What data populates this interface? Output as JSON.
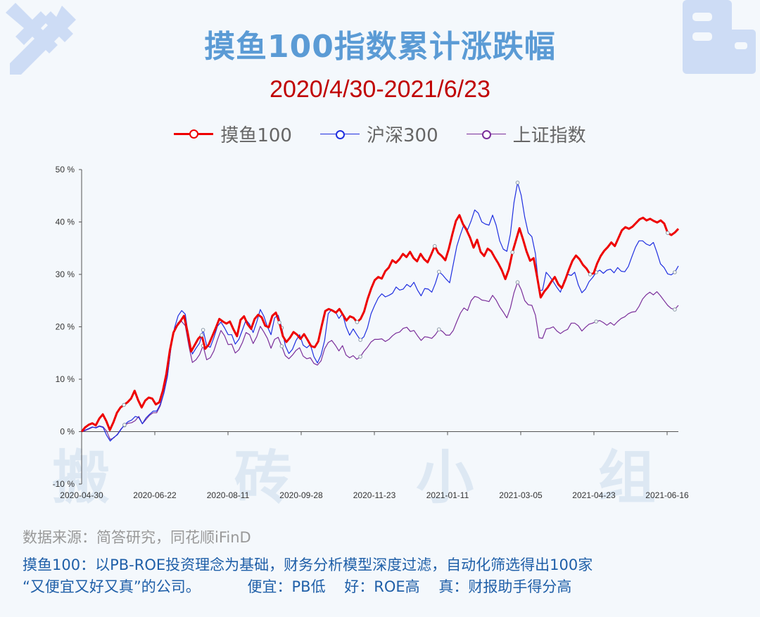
{
  "header": {
    "title": "摸鱼100指数累计涨跌幅",
    "subtitle": "2020/4/30-2021/6/23",
    "watermark": "搬 砖 小 组"
  },
  "footer": {
    "source": "数据来源：简答研究，同花顺iFinD",
    "desc_line1": "摸鱼100：以PB-ROE投资理念为基础，财务分析模型深度过滤，自动化筛选得出100家",
    "desc_line2": "“又便宜又好又真”的公司。          便宜：PB低    好：ROE高    真：财报助手得分高"
  },
  "icons": {
    "top_left": "tools-icon",
    "top_right": "building-icon"
  },
  "chart_data": {
    "type": "line",
    "title": "摸鱼100指数累计涨跌幅",
    "subtitle": "2020/4/30-2021/6/23",
    "xlabel": "",
    "ylabel": "",
    "ylim": [
      -10,
      50
    ],
    "yticks": [
      -10,
      0,
      10,
      20,
      30,
      40,
      50
    ],
    "ytick_labels": [
      "-10 %",
      "0 %",
      "10 %",
      "20 %",
      "30 %",
      "40 %",
      "50 %"
    ],
    "xtick_labels": [
      "2020-04-30",
      "2020-06-22",
      "2020-08-11",
      "2020-09-28",
      "2020-11-23",
      "2021-01-11",
      "2021-03-05",
      "2021-04-23",
      "2021-06-16"
    ],
    "grid": false,
    "legend": "top-center",
    "series": [
      {
        "name": "摸鱼100",
        "color": "#ee0000",
        "values": [
          0,
          0.8,
          1.3,
          1.6,
          1.2,
          2.5,
          3.3,
          2.0,
          0.3,
          1.8,
          3.6,
          4.6,
          5.1,
          5.6,
          6.3,
          7.8,
          6.0,
          4.6,
          5.9,
          6.5,
          6.3,
          5.2,
          5.6,
          7.8,
          11.0,
          15.5,
          18.9,
          20.2,
          21.1,
          22.1,
          19.0,
          15.3,
          16.5,
          17.7,
          18.4,
          15.8,
          16.6,
          18.2,
          19.8,
          21.5,
          21.0,
          20.6,
          21.0,
          19.5,
          18.2,
          21.3,
          22.0,
          20.5,
          19.6,
          21.5,
          22.3,
          21.8,
          20.2,
          19.9,
          22.1,
          22.7,
          20.8,
          18.2,
          17.1,
          17.9,
          19.0,
          18.5,
          17.7,
          18.6,
          17.5,
          16.3,
          16.1,
          17.2,
          20.2,
          23.0,
          23.4,
          23.1,
          22.7,
          23.4,
          22.3,
          21.2,
          22.0,
          21.7,
          20.9,
          21.5,
          22.9,
          25.3,
          27.3,
          28.9,
          29.5,
          29.2,
          30.6,
          31.3,
          32.7,
          32.2,
          32.9,
          33.9,
          33.3,
          34.3,
          33.1,
          32.5,
          33.9,
          32.9,
          32.3,
          33.8,
          35.4,
          34.1,
          33.5,
          32.7,
          34.9,
          37.7,
          40.2,
          41.3,
          39.6,
          38.5,
          37.0,
          35.1,
          36.6,
          34.3,
          33.5,
          34.9,
          34.4,
          33.2,
          32.1,
          30.8,
          29.1,
          31.0,
          34.2,
          36.5,
          38.8,
          36.7,
          34.4,
          32.6,
          33.1,
          29.5,
          25.6,
          26.7,
          27.5,
          28.6,
          29.5,
          28.1,
          27.4,
          29.0,
          30.9,
          32.6,
          33.6,
          32.9,
          31.8,
          31.1,
          30.0,
          30.2,
          32.1,
          33.5,
          34.5,
          35.2,
          36.1,
          35.4,
          36.9,
          38.4,
          39.0,
          38.7,
          39.1,
          39.8,
          40.5,
          40.8,
          40.3,
          40.6,
          40.2,
          39.9,
          40.3,
          39.7,
          37.9,
          37.5,
          38.0,
          38.7
        ]
      },
      {
        "name": "沪深300",
        "color": "#1f2fe0",
        "values": [
          0,
          0.3,
          0.6,
          0.9,
          0.7,
          1.0,
          0.8,
          -0.7,
          -1.8,
          -1.1,
          -0.6,
          0.4,
          1.3,
          1.9,
          2.2,
          2.9,
          2.7,
          1.5,
          2.6,
          3.3,
          3.9,
          3.9,
          5.2,
          7.3,
          10.5,
          16.0,
          19.8,
          22.1,
          23.1,
          22.4,
          17.6,
          14.8,
          15.9,
          16.9,
          19.4,
          16.4,
          16.1,
          17.9,
          20.1,
          20.9,
          19.8,
          18.5,
          18.5,
          16.7,
          17.6,
          19.4,
          21.3,
          20.5,
          18.9,
          20.9,
          23.3,
          22.0,
          20.0,
          18.5,
          21.7,
          22.2,
          19.8,
          16.4,
          14.9,
          15.7,
          17.4,
          18.5,
          16.5,
          16.0,
          16.6,
          14.3,
          13.1,
          14.6,
          17.4,
          22.5,
          23.3,
          22.9,
          21.6,
          22.5,
          20.0,
          18.4,
          19.6,
          18.5,
          17.5,
          18.1,
          19.8,
          22.5,
          24.1,
          25.5,
          26.3,
          25.7,
          26.0,
          26.4,
          27.6,
          27.0,
          27.2,
          28.1,
          27.6,
          28.5,
          27.0,
          25.9,
          27.3,
          27.2,
          26.6,
          28.3,
          30.5,
          29.9,
          29.1,
          28.4,
          31.9,
          35.4,
          37.6,
          39.5,
          38.5,
          40.2,
          42.3,
          41.7,
          40.0,
          39.6,
          39.4,
          41.3,
          39.4,
          36.4,
          34.8,
          34.4,
          37.7,
          43.7,
          47.5,
          45.1,
          40.9,
          37.9,
          37.2,
          33.9,
          26.9,
          27.0,
          30.4,
          29.6,
          28.6,
          27.5,
          26.6,
          28.8,
          30.0,
          29.8,
          30.4,
          28.0,
          26.5,
          27.2,
          28.6,
          29.4,
          30.4,
          30.8,
          30.2,
          30.8,
          31.0,
          30.3,
          31.3,
          30.6,
          30.5,
          31.5,
          33.4,
          35.2,
          36.4,
          36.4,
          35.8,
          35.5,
          36.1,
          34.2,
          32.0,
          31.3,
          30.1,
          29.9,
          30.4,
          31.6
        ]
      },
      {
        "name": "上证指数",
        "color": "#7a2e9a",
        "values": [
          0,
          0.2,
          0.5,
          0.8,
          0.8,
          1.1,
          0.9,
          0.1,
          -1.5,
          -1.2,
          -0.5,
          0.5,
          1.2,
          1.6,
          1.7,
          2.1,
          2.9,
          1.5,
          2.3,
          3.1,
          3.6,
          3.6,
          4.9,
          7.3,
          10.6,
          15.9,
          19.6,
          20.8,
          21.0,
          20.2,
          16.4,
          13.2,
          13.7,
          14.7,
          16.4,
          13.7,
          14.1,
          15.4,
          17.5,
          19.3,
          18.3,
          16.6,
          16.7,
          15.0,
          15.6,
          17.0,
          18.9,
          18.5,
          16.8,
          18.1,
          20.1,
          19.0,
          17.8,
          15.9,
          17.6,
          18.0,
          16.3,
          14.5,
          13.9,
          14.6,
          15.5,
          16.0,
          14.4,
          13.9,
          14.1,
          13.0,
          12.7,
          13.5,
          15.8,
          17.0,
          17.4,
          16.5,
          15.4,
          16.4,
          14.6,
          14.1,
          14.5,
          13.8,
          14.3,
          15.3,
          16.1,
          17.1,
          17.6,
          17.6,
          17.7,
          17.2,
          17.6,
          18.3,
          18.8,
          19.0,
          19.7,
          19.9,
          19.1,
          19.3,
          18.3,
          17.4,
          18.1,
          18.0,
          17.8,
          18.5,
          19.5,
          19.1,
          18.4,
          18.4,
          19.3,
          21.0,
          22.6,
          23.6,
          23.1,
          25.0,
          25.8,
          25.6,
          25.1,
          25.0,
          24.8,
          26.0,
          25.1,
          23.8,
          22.8,
          21.7,
          23.6,
          26.5,
          28.5,
          27.1,
          25.0,
          24.2,
          24.1,
          22.2,
          17.9,
          17.8,
          19.6,
          19.7,
          20.0,
          19.2,
          18.7,
          19.2,
          19.5,
          20.7,
          20.7,
          20.2,
          19.2,
          19.9,
          20.5,
          20.7,
          21.0,
          21.2,
          20.8,
          20.3,
          20.8,
          20.3,
          21.0,
          21.6,
          21.9,
          22.5,
          22.8,
          22.9,
          23.9,
          25.3,
          26.1,
          26.6,
          26.1,
          26.7,
          25.9,
          25.0,
          24.1,
          23.5,
          23.3,
          24.1
        ]
      }
    ]
  }
}
